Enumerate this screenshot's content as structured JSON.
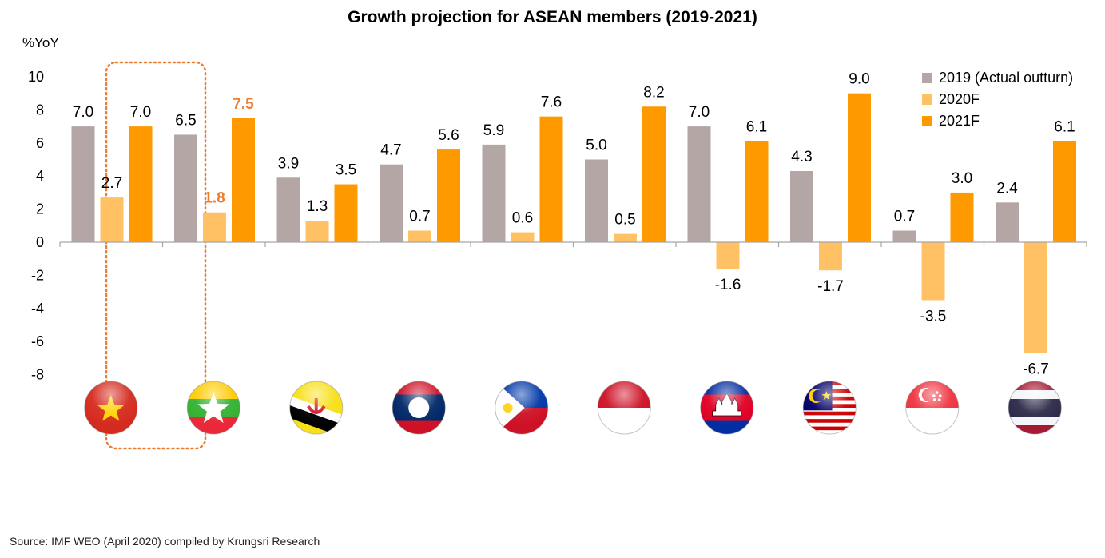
{
  "chart_data": {
    "type": "bar",
    "title": "Growth projection for ASEAN members (2019-2021)",
    "ylabel": "%YoY",
    "xlabel": "",
    "ylim": [
      -8,
      10
    ],
    "yticks": [
      10,
      8,
      6,
      4,
      2,
      0,
      -2,
      -4,
      -6,
      -8
    ],
    "categories": [
      "Vietnam",
      "Myanmar",
      "Brunei",
      "Laos",
      "Philippines",
      "Indonesia",
      "Cambodia",
      "Malaysia",
      "Singapore",
      "Thailand"
    ],
    "series": [
      {
        "name": "2019 (Actual outturn)",
        "color": "#b3a6a5",
        "values": [
          7.0,
          6.5,
          3.9,
          4.7,
          5.9,
          5.0,
          7.0,
          4.3,
          0.7,
          2.4
        ]
      },
      {
        "name": "2020F",
        "color": "#ffc164",
        "values": [
          2.7,
          1.8,
          1.3,
          0.7,
          0.6,
          0.5,
          -1.6,
          -1.7,
          -3.5,
          -6.7
        ]
      },
      {
        "name": "2021F",
        "color": "#ff9900",
        "values": [
          7.0,
          7.5,
          3.5,
          5.6,
          7.6,
          8.2,
          6.1,
          9.0,
          3.0,
          6.1
        ]
      }
    ],
    "highlight": {
      "category": "Myanmar",
      "color": "#ed7d31"
    },
    "legend_position": "top-right",
    "grid": false
  },
  "flags": [
    "vietnam-flag-icon",
    "myanmar-flag-icon",
    "brunei-flag-icon",
    "laos-flag-icon",
    "philippines-flag-icon",
    "indonesia-flag-icon",
    "cambodia-flag-icon",
    "malaysia-flag-icon",
    "singapore-flag-icon",
    "thailand-flag-icon"
  ],
  "source": "Source: IMF WEO (April 2020) compiled by Krungsri Research"
}
